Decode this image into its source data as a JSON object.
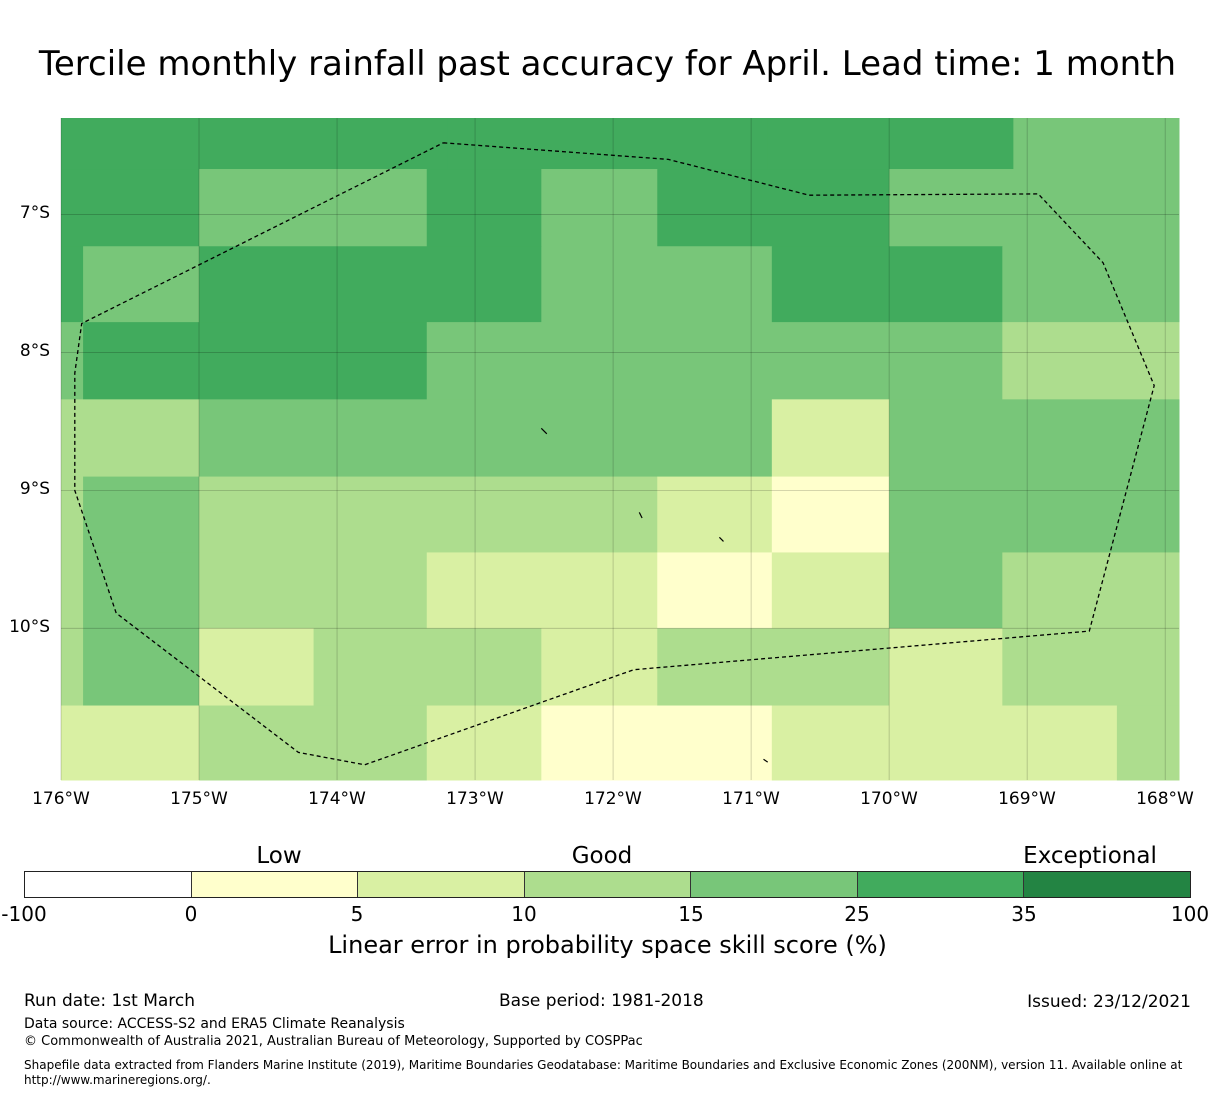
{
  "title": "Tercile monthly rainfall past accuracy for April. Lead time: 1 month",
  "map": {
    "lon_range": [
      -176,
      -167.9
    ],
    "lat_range": [
      -6.3,
      -11.1
    ],
    "lat_labels": [
      "7°S",
      "8°S",
      "9°S",
      "10°S"
    ],
    "lat_values": [
      -7,
      -8,
      -9,
      -10
    ],
    "lon_labels": [
      "176°W",
      "175°W",
      "174°W",
      "173°W",
      "172°W",
      "171°W",
      "170°W",
      "169°W",
      "168°W"
    ],
    "lon_values": [
      -176,
      -175,
      -174,
      -173,
      -172,
      -171,
      -170,
      -169,
      -168
    ],
    "cells": [
      {
        "lon": [
          -176,
          -173.2
        ],
        "lat": [
          -6.3,
          -6.67
        ],
        "cat": 5
      },
      {
        "lon": [
          -173.2,
          -170.88
        ],
        "lat": [
          -6.3,
          -6.67
        ],
        "cat": 5
      },
      {
        "lon": [
          -170.88,
          -170.0
        ],
        "lat": [
          -6.3,
          -6.67
        ],
        "cat": 5
      },
      {
        "lon": [
          -170.0,
          -169.1
        ],
        "lat": [
          -6.3,
          -6.67
        ],
        "cat": 5
      },
      {
        "lon": [
          -169.1,
          -167.9
        ],
        "lat": [
          -6.3,
          -6.67
        ],
        "cat": 4
      },
      {
        "lon": [
          -176,
          -175.0
        ],
        "lat": [
          -6.67,
          -7.23
        ],
        "cat": 5
      },
      {
        "lon": [
          -175.0,
          -173.35
        ],
        "lat": [
          -6.67,
          -7.23
        ],
        "cat": 4
      },
      {
        "lon": [
          -173.35,
          -172.52
        ],
        "lat": [
          -6.67,
          -7.23
        ],
        "cat": 5
      },
      {
        "lon": [
          -172.52,
          -171.68
        ],
        "lat": [
          -6.67,
          -7.23
        ],
        "cat": 4
      },
      {
        "lon": [
          -171.68,
          -170.0
        ],
        "lat": [
          -6.67,
          -7.23
        ],
        "cat": 5
      },
      {
        "lon": [
          -170.0,
          -167.9
        ],
        "lat": [
          -6.67,
          -7.23
        ],
        "cat": 4
      },
      {
        "lon": [
          -176,
          -175.84
        ],
        "lat": [
          -7.23,
          -7.78
        ],
        "cat": 5
      },
      {
        "lon": [
          -175.84,
          -175.0
        ],
        "lat": [
          -7.23,
          -7.78
        ],
        "cat": 4
      },
      {
        "lon": [
          -175.0,
          -172.52
        ],
        "lat": [
          -7.23,
          -7.78
        ],
        "cat": 5
      },
      {
        "lon": [
          -172.52,
          -170.85
        ],
        "lat": [
          -7.23,
          -7.78
        ],
        "cat": 4
      },
      {
        "lon": [
          -170.85,
          -169.18
        ],
        "lat": [
          -7.23,
          -7.78
        ],
        "cat": 5
      },
      {
        "lon": [
          -169.18,
          -167.9
        ],
        "lat": [
          -7.23,
          -7.78
        ],
        "cat": 4
      },
      {
        "lon": [
          -176,
          -175.84
        ],
        "lat": [
          -7.78,
          -8.34
        ],
        "cat": 4
      },
      {
        "lon": [
          -175.84,
          -173.35
        ],
        "lat": [
          -7.78,
          -8.34
        ],
        "cat": 5
      },
      {
        "lon": [
          -173.35,
          -169.18
        ],
        "lat": [
          -7.78,
          -8.34
        ],
        "cat": 4
      },
      {
        "lon": [
          -169.18,
          -167.9
        ],
        "lat": [
          -7.78,
          -8.34
        ],
        "cat": 3
      },
      {
        "lon": [
          -176,
          -175.0
        ],
        "lat": [
          -8.34,
          -8.9
        ],
        "cat": 3
      },
      {
        "lon": [
          -175.0,
          -170.85
        ],
        "lat": [
          -8.34,
          -8.9
        ],
        "cat": 4
      },
      {
        "lon": [
          -170.85,
          -170.0
        ],
        "lat": [
          -8.34,
          -8.9
        ],
        "cat": 2
      },
      {
        "lon": [
          -170.0,
          -167.9
        ],
        "lat": [
          -8.34,
          -8.9
        ],
        "cat": 4
      },
      {
        "lon": [
          -176,
          -175.84
        ],
        "lat": [
          -8.9,
          -9.45
        ],
        "cat": 3
      },
      {
        "lon": [
          -175.84,
          -175.0
        ],
        "lat": [
          -8.9,
          -9.45
        ],
        "cat": 4
      },
      {
        "lon": [
          -175.0,
          -171.68
        ],
        "lat": [
          -8.9,
          -9.45
        ],
        "cat": 3
      },
      {
        "lon": [
          -171.68,
          -170.85
        ],
        "lat": [
          -8.9,
          -9.45
        ],
        "cat": 2
      },
      {
        "lon": [
          -170.85,
          -170.0
        ],
        "lat": [
          -8.9,
          -9.45
        ],
        "cat": 1
      },
      {
        "lon": [
          -170.0,
          -167.9
        ],
        "lat": [
          -8.9,
          -9.45
        ],
        "cat": 4
      },
      {
        "lon": [
          -176,
          -175.84
        ],
        "lat": [
          -9.45,
          -10.0
        ],
        "cat": 3
      },
      {
        "lon": [
          -175.84,
          -175.0
        ],
        "lat": [
          -9.45,
          -10.0
        ],
        "cat": 4
      },
      {
        "lon": [
          -175.0,
          -173.35
        ],
        "lat": [
          -9.45,
          -10.0
        ],
        "cat": 3
      },
      {
        "lon": [
          -173.35,
          -171.68
        ],
        "lat": [
          -9.45,
          -10.0
        ],
        "cat": 2
      },
      {
        "lon": [
          -171.68,
          -170.85
        ],
        "lat": [
          -9.45,
          -10.0
        ],
        "cat": 1
      },
      {
        "lon": [
          -170.85,
          -170.0
        ],
        "lat": [
          -9.45,
          -10.0
        ],
        "cat": 2
      },
      {
        "lon": [
          -170.0,
          -169.18
        ],
        "lat": [
          -9.45,
          -10.0
        ],
        "cat": 4
      },
      {
        "lon": [
          -169.18,
          -167.9
        ],
        "lat": [
          -9.45,
          -10.0
        ],
        "cat": 3
      },
      {
        "lon": [
          -176,
          -175.84
        ],
        "lat": [
          -10.0,
          -10.56
        ],
        "cat": 3
      },
      {
        "lon": [
          -175.84,
          -175.0
        ],
        "lat": [
          -10.0,
          -10.56
        ],
        "cat": 4
      },
      {
        "lon": [
          -175.0,
          -174.17
        ],
        "lat": [
          -10.0,
          -10.56
        ],
        "cat": 2
      },
      {
        "lon": [
          -174.17,
          -172.52
        ],
        "lat": [
          -10.0,
          -10.56
        ],
        "cat": 3
      },
      {
        "lon": [
          -172.52,
          -171.68
        ],
        "lat": [
          -10.0,
          -10.56
        ],
        "cat": 2
      },
      {
        "lon": [
          -171.68,
          -170.0
        ],
        "lat": [
          -10.0,
          -10.56
        ],
        "cat": 3
      },
      {
        "lon": [
          -170.0,
          -169.18
        ],
        "lat": [
          -10.0,
          -10.56
        ],
        "cat": 2
      },
      {
        "lon": [
          -169.18,
          -167.9
        ],
        "lat": [
          -10.0,
          -10.56
        ],
        "cat": 3
      },
      {
        "lon": [
          -176,
          -175.0
        ],
        "lat": [
          -10.56,
          -11.1
        ],
        "cat": 2
      },
      {
        "lon": [
          -175.0,
          -173.35
        ],
        "lat": [
          -10.56,
          -11.1
        ],
        "cat": 3
      },
      {
        "lon": [
          -173.35,
          -172.52
        ],
        "lat": [
          -10.56,
          -11.1
        ],
        "cat": 2
      },
      {
        "lon": [
          -172.52,
          -170.85
        ],
        "lat": [
          -10.56,
          -11.1
        ],
        "cat": 1
      },
      {
        "lon": [
          -170.85,
          -168.35
        ],
        "lat": [
          -10.56,
          -11.1
        ],
        "cat": 2
      },
      {
        "lon": [
          -168.35,
          -167.9
        ],
        "lat": [
          -10.56,
          -11.1
        ],
        "cat": 3
      }
    ],
    "eez_boundary": [
      [
        -173.23,
        -6.48
      ],
      [
        -171.6,
        -6.6
      ],
      [
        -170.58,
        -6.86
      ],
      [
        -168.92,
        -6.85
      ],
      [
        -168.45,
        -7.35
      ],
      [
        -168.08,
        -8.24
      ],
      [
        -168.55,
        -10.02
      ],
      [
        -171.85,
        -10.3
      ],
      [
        -173.8,
        -10.99
      ],
      [
        -174.28,
        -10.9
      ],
      [
        -175.6,
        -9.89
      ],
      [
        -175.9,
        -9.0
      ],
      [
        -175.9,
        -8.15
      ],
      [
        -175.85,
        -7.79
      ],
      [
        -173.23,
        -6.48
      ]
    ],
    "islands": [
      [
        [
          -172.52,
          -8.55
        ],
        [
          -172.48,
          -8.59
        ]
      ],
      [
        [
          -171.81,
          -9.16
        ],
        [
          -171.79,
          -9.2
        ]
      ],
      [
        [
          -171.23,
          -9.34
        ],
        [
          -171.2,
          -9.37
        ]
      ],
      [
        [
          -170.91,
          -10.95
        ],
        [
          -170.88,
          -10.97
        ]
      ]
    ]
  },
  "colorbar": {
    "category_labels": [
      "Low",
      "Good",
      "Exceptional"
    ],
    "tick_labels": [
      "-100",
      "0",
      "5",
      "10",
      "15",
      "25",
      "35",
      "100"
    ],
    "colors": [
      "#ffffff",
      "#ffffcc",
      "#d9f0a3",
      "#addd8e",
      "#78c679",
      "#41ab5d",
      "#238443"
    ],
    "title": "Linear error in probability space skill score (%)"
  },
  "footer": {
    "run_date": "Run date: 1st March",
    "base_period": "Base period: 1981-2018",
    "issued": "Issued: 23/12/2021",
    "data_source": "Data source: ACCESS-S2 and ERA5 Climate Reanalysis",
    "copyright": "© Commonwealth of Australia 2021, Australian Bureau of Meteorology, Supported by COSPPac",
    "shapefile_line1": "Shapefile data extracted from Flanders Marine Institute (2019), Maritime Boundaries Geodatabase: Maritime Boundaries and Exclusive Economic Zones (200NM), version 11. Available online at",
    "shapefile_line2": "http://www.marineregions.org/."
  }
}
